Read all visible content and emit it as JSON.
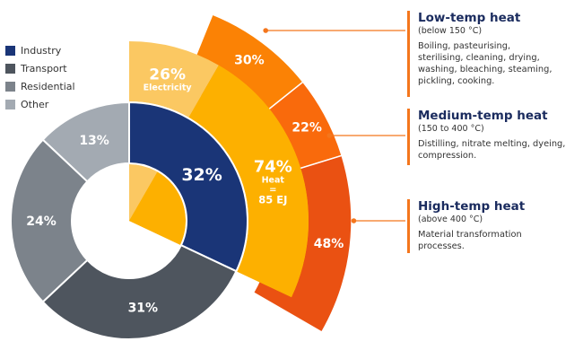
{
  "colors": {
    "industry": "#1a3577",
    "transport": "#4e555e",
    "residential": "#7c838b",
    "other": "#a3aab2",
    "electricity": "#fbc862",
    "heat": "#fdb000",
    "low": "#fb8205",
    "medium": "#f96a0c",
    "high": "#ea5112",
    "connector": "#f4761c"
  },
  "legend": [
    {
      "label": "Industry",
      "color": "#1a3577"
    },
    {
      "label": "Transport",
      "color": "#4e555e"
    },
    {
      "label": "Residential",
      "color": "#7c838b"
    },
    {
      "label": "Other",
      "color": "#a3aab2"
    }
  ],
  "chart_data": {
    "type": "pie",
    "title": "",
    "sectors": {
      "categories": [
        "Industry",
        "Transport",
        "Residential",
        "Other"
      ],
      "values": [
        32,
        31,
        24,
        13
      ],
      "labels": [
        "32%",
        "31%",
        "24%",
        "13%"
      ]
    },
    "industry_split": {
      "electricity": {
        "value": 26,
        "label": "26%",
        "sublabel": "Electricity"
      },
      "heat": {
        "value": 74,
        "label": "74%",
        "sublabel_line1": "Heat",
        "sublabel_line2": "=",
        "sublabel_line3": "85 EJ"
      }
    },
    "heat_split": {
      "categories": [
        "Low-temp heat",
        "Medium-temp heat",
        "High-temp heat"
      ],
      "values": [
        30,
        22,
        48
      ],
      "labels": [
        "30%",
        "22%",
        "48%"
      ]
    }
  },
  "panels": {
    "low": {
      "title": "Low-temp heat",
      "range": "(below 150 °C)",
      "desc": [
        "Boiling, pasteurising,",
        "sterilising, cleaning, drying,",
        "washing, bleaching, steaming,",
        "pickling, cooking."
      ]
    },
    "medium": {
      "title": "Medium-temp heat",
      "range": "(150 to 400 °C)",
      "desc": [
        "Distilling, nitrate melting, dyeing,",
        "compression."
      ]
    },
    "high": {
      "title": "High-temp heat",
      "range": "(above 400 °C)",
      "desc": [
        "Material transformation",
        "processes."
      ]
    }
  }
}
